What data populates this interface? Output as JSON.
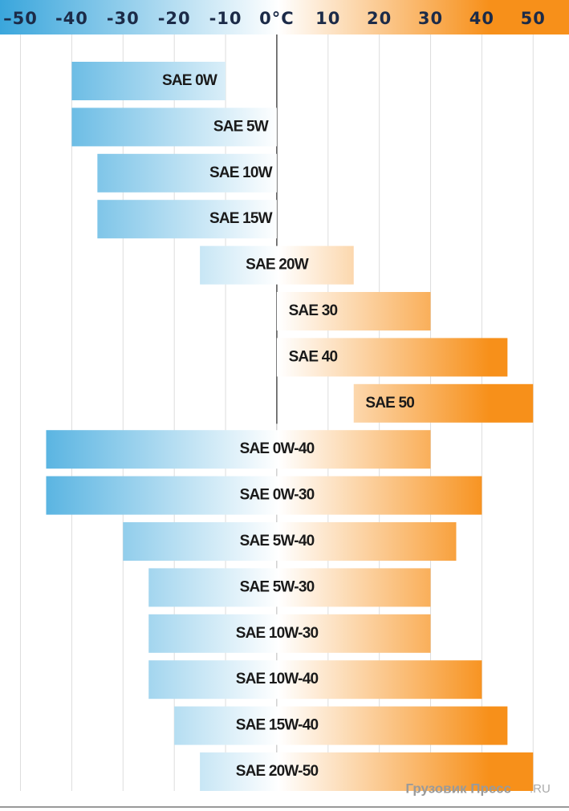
{
  "chart_data": {
    "type": "range",
    "categories": [
      "SAE 0W",
      "SAE 5W",
      "SAE 10W",
      "SAE 15W",
      "SAE 20W",
      "SAE 30",
      "SAE 40",
      "SAE 50",
      "SAE 0W-40",
      "SAE 0W-30",
      "SAE 5W-40",
      "SAE 5W-30",
      "SAE 10W-30",
      "SAE 10W-40",
      "SAE 15W-40",
      "SAE 20W-50"
    ],
    "low": [
      -40,
      -40,
      -35,
      -35,
      -15,
      0,
      0,
      15,
      -45,
      -45,
      -30,
      -25,
      -25,
      -25,
      -20,
      -15
    ],
    "high": [
      -10,
      0,
      0,
      0,
      15,
      30,
      45,
      50,
      30,
      40,
      35,
      30,
      30,
      40,
      45,
      50
    ],
    "xlim": [
      -54,
      57
    ],
    "xticks": [
      {
        "value": -50,
        "label": "–50"
      },
      {
        "value": -40,
        "label": "-40"
      },
      {
        "value": -30,
        "label": "-30"
      },
      {
        "value": -20,
        "label": "-20"
      },
      {
        "value": -10,
        "label": "-10"
      },
      {
        "value": 0,
        "label": "0°C"
      },
      10,
      20,
      30,
      40,
      50
    ],
    "cold_color": "#3aa6dc",
    "hot_color": "#f7901a",
    "grid": true,
    "watermark": "Грузовик Пресс",
    "watermark_suffix": ".RU"
  }
}
